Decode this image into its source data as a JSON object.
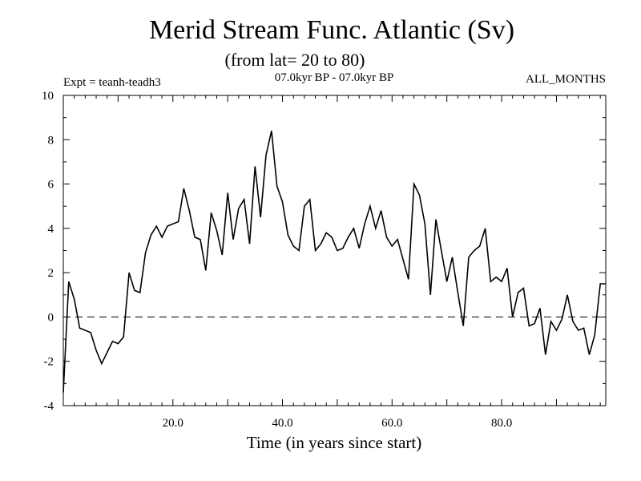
{
  "chart_data": {
    "type": "line",
    "title": "Merid Stream Func. Atlantic (Sv)",
    "subtitle": "(from lat= 20 to 80)",
    "experiment": "Expt = teanh-teadh3",
    "period": "07.0kyr BP - 07.0kyr BP",
    "season": "ALL_MONTHS",
    "xlabel": "Time (in years since start)",
    "ylabel": "",
    "xlim": [
      0,
      99
    ],
    "ylim": [
      -4,
      10
    ],
    "x_ticks": [
      20,
      40,
      60,
      80
    ],
    "x_tick_labels": [
      "20.0",
      "40.0",
      "60.0",
      "80.0"
    ],
    "y_ticks": [
      -4,
      -2,
      0,
      2,
      4,
      6,
      8,
      10
    ],
    "y_tick_labels": [
      "-4",
      "-2",
      "0",
      "2",
      "4",
      "6",
      "8",
      "10"
    ],
    "reference_line": 0,
    "series": [
      {
        "name": "Merid Stream Func.",
        "x": [
          0,
          1,
          2,
          3,
          5,
          6,
          7,
          9,
          10,
          11,
          12,
          13,
          14,
          15,
          16,
          17,
          18,
          19,
          20,
          21,
          22,
          23,
          24,
          25,
          26,
          27,
          28,
          29,
          30,
          31,
          32,
          33,
          34,
          35,
          36,
          37,
          38,
          39,
          40,
          41,
          42,
          43,
          44,
          45,
          46,
          47,
          48,
          49,
          50,
          51,
          52,
          53,
          54,
          55,
          56,
          57,
          58,
          59,
          60,
          61,
          62,
          63,
          64,
          65,
          66,
          67,
          68,
          69,
          70,
          71,
          72,
          73,
          74,
          75,
          76,
          77,
          78,
          79,
          80,
          81,
          82,
          83,
          84,
          85,
          86,
          87,
          88,
          89,
          90,
          91,
          92,
          93,
          94,
          95,
          96,
          97,
          98,
          99
        ],
        "values": [
          -3.4,
          1.6,
          0.8,
          -0.5,
          -0.7,
          -1.5,
          -2.1,
          -1.1,
          -1.2,
          -0.9,
          2.0,
          1.2,
          1.1,
          2.9,
          3.7,
          4.1,
          3.6,
          4.1,
          4.2,
          4.3,
          5.8,
          4.8,
          3.6,
          3.5,
          2.1,
          4.7,
          3.9,
          2.8,
          5.6,
          3.5,
          4.9,
          5.3,
          3.3,
          6.8,
          4.5,
          7.3,
          8.4,
          5.9,
          5.2,
          3.7,
          3.2,
          3.0,
          5.0,
          5.3,
          3.0,
          3.3,
          3.8,
          3.6,
          3.0,
          3.1,
          3.6,
          4.0,
          3.1,
          4.2,
          5.0,
          4.0,
          4.8,
          3.6,
          3.2,
          3.5,
          2.6,
          1.7,
          6.0,
          5.5,
          4.2,
          1.0,
          4.4,
          3.0,
          1.6,
          2.7,
          1.1,
          -0.4,
          2.7,
          3.0,
          3.2,
          4.0,
          1.6,
          1.8,
          1.6,
          2.2,
          0.0,
          1.1,
          1.3,
          -0.4,
          -0.3,
          0.4,
          -1.7,
          -0.2,
          -0.6,
          -0.1,
          1.0,
          -0.2,
          -0.6,
          -0.5,
          -1.7,
          -0.8,
          1.5,
          1.5
        ]
      }
    ]
  }
}
